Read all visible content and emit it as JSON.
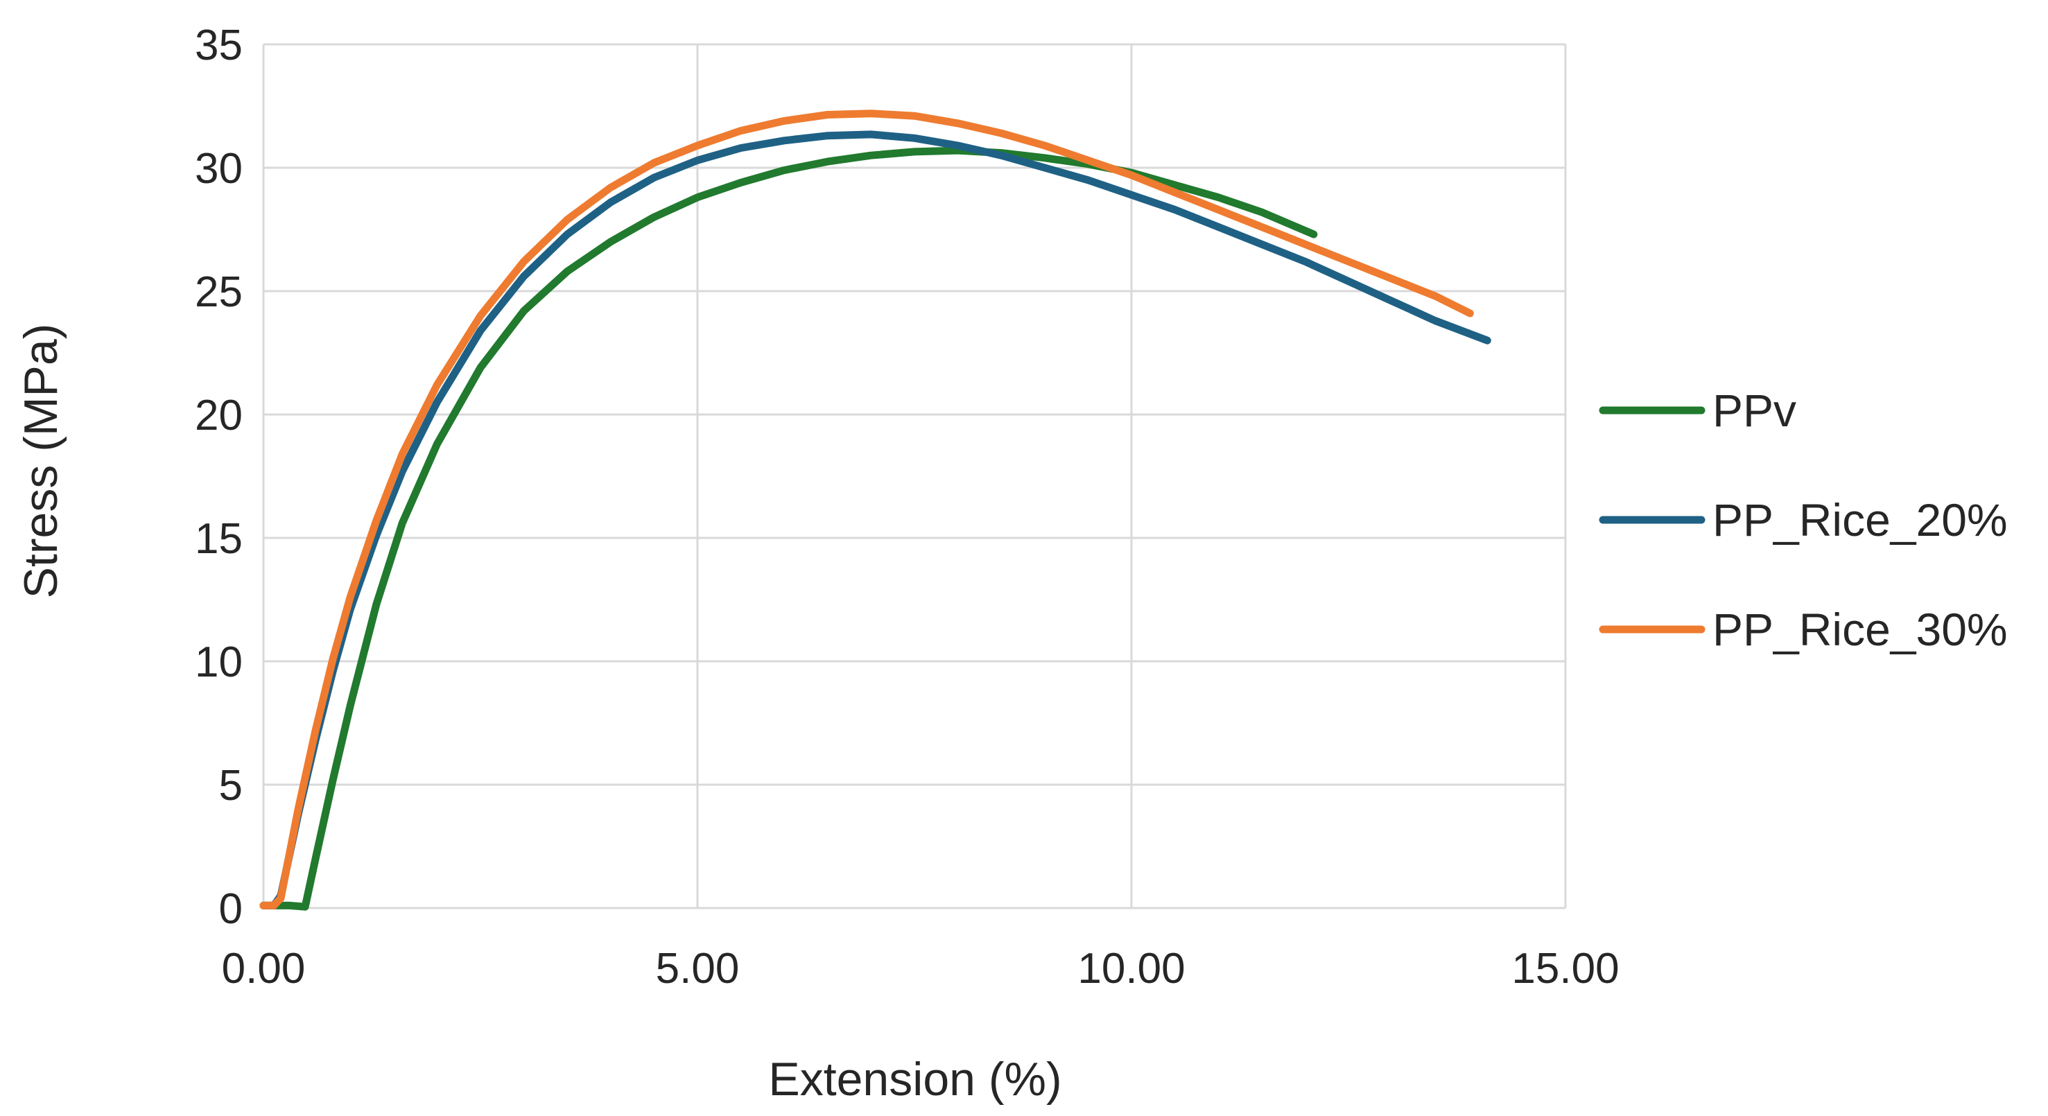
{
  "chart_data": {
    "type": "line",
    "title": "",
    "xlabel": "Extension (%)",
    "ylabel": "Stress (MPa)",
    "xlim": [
      0,
      15
    ],
    "ylim": [
      0,
      35
    ],
    "x_ticks": [
      "0.00",
      "5.00",
      "10.00",
      "15.00"
    ],
    "y_ticks": [
      "0",
      "5",
      "10",
      "15",
      "20",
      "25",
      "30",
      "35"
    ],
    "grid": true,
    "legend": "right",
    "series": [
      {
        "name": "PPv",
        "color": "#217a2e",
        "points": [
          [
            0,
            0.1
          ],
          [
            0.3,
            0.1
          ],
          [
            0.48,
            0.05
          ],
          [
            0.6,
            2.0
          ],
          [
            0.8,
            5.2
          ],
          [
            1.0,
            8.2
          ],
          [
            1.3,
            12.3
          ],
          [
            1.6,
            15.6
          ],
          [
            2.0,
            18.8
          ],
          [
            2.5,
            21.9
          ],
          [
            3.0,
            24.2
          ],
          [
            3.5,
            25.8
          ],
          [
            4.0,
            27.0
          ],
          [
            4.5,
            28.0
          ],
          [
            5.0,
            28.8
          ],
          [
            5.5,
            29.4
          ],
          [
            6.0,
            29.9
          ],
          [
            6.5,
            30.25
          ],
          [
            7.0,
            30.5
          ],
          [
            7.5,
            30.65
          ],
          [
            8.0,
            30.7
          ],
          [
            8.5,
            30.6
          ],
          [
            9.0,
            30.4
          ],
          [
            9.5,
            30.15
          ],
          [
            10.0,
            29.8
          ],
          [
            10.5,
            29.3
          ],
          [
            11.0,
            28.8
          ],
          [
            11.5,
            28.2
          ],
          [
            12.1,
            27.3
          ]
        ]
      },
      {
        "name": "PP_Rice_20%",
        "color": "#1f6185",
        "points": [
          [
            0,
            0.1
          ],
          [
            0.12,
            0.1
          ],
          [
            0.2,
            0.5
          ],
          [
            0.4,
            3.8
          ],
          [
            0.6,
            6.8
          ],
          [
            0.8,
            9.6
          ],
          [
            1.0,
            12.1
          ],
          [
            1.3,
            15.1
          ],
          [
            1.6,
            17.7
          ],
          [
            2.0,
            20.5
          ],
          [
            2.5,
            23.4
          ],
          [
            3.0,
            25.6
          ],
          [
            3.5,
            27.3
          ],
          [
            4.0,
            28.6
          ],
          [
            4.5,
            29.6
          ],
          [
            5.0,
            30.3
          ],
          [
            5.5,
            30.8
          ],
          [
            6.0,
            31.1
          ],
          [
            6.5,
            31.3
          ],
          [
            7.0,
            31.35
          ],
          [
            7.5,
            31.2
          ],
          [
            8.0,
            30.9
          ],
          [
            8.5,
            30.5
          ],
          [
            9.0,
            30.0
          ],
          [
            9.5,
            29.5
          ],
          [
            10.0,
            28.9
          ],
          [
            10.5,
            28.3
          ],
          [
            11.0,
            27.6
          ],
          [
            11.5,
            26.9
          ],
          [
            12.0,
            26.2
          ],
          [
            12.5,
            25.4
          ],
          [
            13.0,
            24.6
          ],
          [
            13.5,
            23.8
          ],
          [
            14.1,
            23.0
          ]
        ]
      },
      {
        "name": "PP_Rice_30%",
        "color": "#ee7b30",
        "points": [
          [
            0,
            0.1
          ],
          [
            0.12,
            0.1
          ],
          [
            0.2,
            0.4
          ],
          [
            0.4,
            4.0
          ],
          [
            0.6,
            7.2
          ],
          [
            0.8,
            10.1
          ],
          [
            1.0,
            12.6
          ],
          [
            1.3,
            15.7
          ],
          [
            1.6,
            18.4
          ],
          [
            2.0,
            21.2
          ],
          [
            2.5,
            24.0
          ],
          [
            3.0,
            26.2
          ],
          [
            3.5,
            27.9
          ],
          [
            4.0,
            29.2
          ],
          [
            4.5,
            30.2
          ],
          [
            5.0,
            30.9
          ],
          [
            5.5,
            31.5
          ],
          [
            6.0,
            31.9
          ],
          [
            6.5,
            32.15
          ],
          [
            7.0,
            32.2
          ],
          [
            7.5,
            32.1
          ],
          [
            8.0,
            31.8
          ],
          [
            8.5,
            31.4
          ],
          [
            9.0,
            30.9
          ],
          [
            9.5,
            30.3
          ],
          [
            10.0,
            29.7
          ],
          [
            10.5,
            29.0
          ],
          [
            11.0,
            28.3
          ],
          [
            11.5,
            27.6
          ],
          [
            12.0,
            26.9
          ],
          [
            12.5,
            26.2
          ],
          [
            13.0,
            25.5
          ],
          [
            13.5,
            24.8
          ],
          [
            13.9,
            24.1
          ]
        ]
      }
    ]
  }
}
